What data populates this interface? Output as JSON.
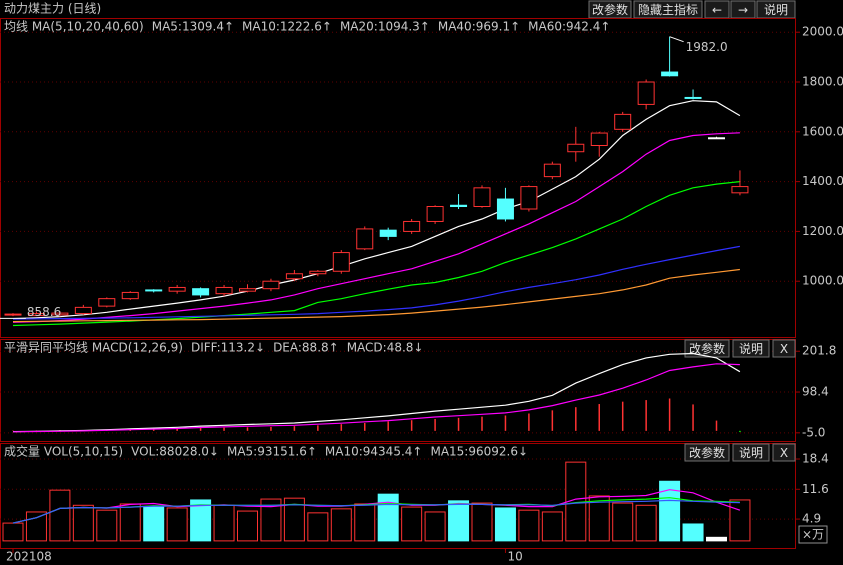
{
  "header": {
    "title": "动力煤主力 (日线)",
    "buttons": [
      "改参数",
      "隐藏主指标",
      "←",
      "→",
      "说明"
    ]
  },
  "chart_data": [
    {
      "type": "candlestick",
      "legend_title": "均线 MA(5,10,20,40,60)",
      "buttons": [],
      "open": [
        865,
        862,
        865,
        870,
        900,
        930,
        965,
        960,
        970,
        950,
        960,
        970,
        1010,
        1030,
        1040,
        1130,
        1205,
        1200,
        1240,
        1305,
        1300,
        1330,
        1290,
        1420,
        1520,
        1545,
        1610,
        1710,
        1840,
        1738,
        1576,
        1355
      ],
      "high": [
        872,
        878,
        880,
        905,
        935,
        960,
        968,
        985,
        975,
        985,
        988,
        1010,
        1045,
        1045,
        1125,
        1220,
        1215,
        1250,
        1305,
        1350,
        1385,
        1375,
        1385,
        1480,
        1620,
        1600,
        1680,
        1810,
        1982,
        1770,
        1580,
        1445
      ],
      "low": [
        860,
        860,
        858.6,
        865,
        895,
        925,
        955,
        950,
        935,
        940,
        955,
        960,
        1000,
        1020,
        1030,
        1125,
        1165,
        1190,
        1230,
        1290,
        1295,
        1240,
        1280,
        1410,
        1480,
        1500,
        1600,
        1690,
        1822,
        1730,
        1574,
        1345
      ],
      "close": [
        868,
        870,
        872,
        895,
        930,
        955,
        962,
        975,
        945,
        975,
        970,
        1000,
        1030,
        1040,
        1115,
        1210,
        1180,
        1240,
        1300,
        1300,
        1375,
        1250,
        1380,
        1470,
        1550,
        1595,
        1670,
        1800,
        1825,
        1735,
        1576,
        1380
      ],
      "up_color": "#ff3232",
      "down_color": "#54ffff",
      "flat_color": "#ffffff",
      "high_label": "1982.0",
      "low_label": "858.6",
      "series": [
        {
          "name": "MA5:1309.4↑",
          "color": "#ffffff",
          "values": [
            850,
            853,
            858,
            865,
            875,
            888,
            900,
            912,
            925,
            940,
            960,
            985,
            1005,
            1030,
            1060,
            1090,
            1115,
            1140,
            1180,
            1220,
            1250,
            1290,
            1320,
            1370,
            1420,
            1490,
            1585,
            1650,
            1705,
            1725,
            1720,
            1665
          ]
        },
        {
          "name": "MA10:1222.6↑",
          "color": "#ff00ff",
          "values": [
            835,
            838,
            842,
            848,
            855,
            862,
            870,
            880,
            890,
            900,
            912,
            925,
            945,
            970,
            990,
            1010,
            1030,
            1050,
            1080,
            1110,
            1150,
            1190,
            1230,
            1275,
            1320,
            1380,
            1440,
            1510,
            1565,
            1585,
            1592,
            1596
          ]
        },
        {
          "name": "MA20:1094.3↑",
          "color": "#00ff00",
          "values": [
            822,
            825,
            828,
            832,
            836,
            840,
            845,
            850,
            856,
            862,
            868,
            875,
            882,
            915,
            930,
            950,
            968,
            985,
            995,
            1015,
            1040,
            1075,
            1105,
            1135,
            1170,
            1210,
            1250,
            1300,
            1345,
            1375,
            1390,
            1400
          ]
        },
        {
          "name": "MA40:969.1↑",
          "color": "#3030ff",
          "values": [
            848,
            849,
            850,
            851,
            852,
            853,
            855,
            857,
            859,
            861,
            863,
            865,
            867,
            870,
            875,
            880,
            886,
            893,
            905,
            920,
            938,
            958,
            975,
            990,
            1006,
            1025,
            1048,
            1068,
            1087,
            1105,
            1123,
            1140
          ]
        },
        {
          "name": "MA60:942.4↑",
          "color": "#ff9933",
          "values": [
            838,
            839,
            840,
            841,
            842,
            843,
            844,
            845,
            846,
            848,
            850,
            852,
            854,
            856,
            858,
            862,
            866,
            872,
            880,
            888,
            896,
            906,
            917,
            928,
            939,
            950,
            965,
            985,
            1012,
            1025,
            1036,
            1047
          ]
        }
      ],
      "ylim": [
        776,
        2057
      ],
      "yticks": [
        {
          "value": 2000,
          "label": "2000.0"
        },
        {
          "value": 1800,
          "label": "1800.0"
        },
        {
          "value": 1600,
          "label": "1600.0"
        },
        {
          "value": 1400,
          "label": "1400.0"
        },
        {
          "value": 1200,
          "label": "1200.0"
        },
        {
          "value": 1000,
          "label": "1000.0"
        }
      ],
      "grid": true
    },
    {
      "type": "line",
      "legend_title": "平滑异同平均线 MACD(12,26,9)",
      "buttons": [
        "改参数",
        "说明",
        "X"
      ],
      "series": [
        {
          "name": "DIFF:113.2↓",
          "color": "#ffffff",
          "type": "line",
          "values": [
            -2,
            -1,
            0,
            1,
            3,
            5,
            7,
            9,
            12,
            14,
            16,
            18,
            20,
            24,
            28,
            33,
            38,
            44,
            50,
            55,
            60,
            65,
            75,
            90,
            121,
            145,
            168,
            185,
            194,
            196,
            185,
            150
          ]
        },
        {
          "name": "DEA:88.8↑",
          "color": "#ff00ff",
          "type": "line",
          "values": [
            -2.5,
            -1.5,
            -1,
            0,
            1.5,
            3,
            4.5,
            6,
            8.5,
            10,
            11.5,
            13,
            14,
            17,
            19.5,
            23,
            26,
            30.5,
            35,
            38.5,
            42,
            45.5,
            53,
            64,
            78,
            91,
            108,
            129,
            153,
            162,
            170,
            168
          ]
        },
        {
          "name": "MACD:48.8↓",
          "color": "#00ff00",
          "type": "bar",
          "up_color": "#ff3232",
          "values": [
            1,
            1,
            2,
            2,
            3,
            4,
            5,
            6,
            7,
            8,
            9,
            10,
            12,
            14,
            17,
            20,
            24,
            27,
            30,
            33,
            36,
            39,
            44,
            52,
            60,
            68,
            74,
            78,
            82,
            67,
            26,
            -3
          ]
        }
      ],
      "ylim": [
        -25.7,
        232.8
      ],
      "yticks": [
        201.8,
        98.4,
        {
          "value": -5,
          "label": "-5.0"
        }
      ],
      "grid": true
    },
    {
      "type": "bar",
      "legend_title": "成交量 VOL(5,10,15)",
      "buttons": [
        "改参数",
        "说明",
        "X"
      ],
      "unit": "×万",
      "categories": [
        "202108",
        null,
        null,
        null,
        null,
        null,
        null,
        null,
        null,
        null,
        null,
        null,
        null,
        null,
        null,
        null,
        null,
        null,
        null,
        null,
        null,
        "10",
        null,
        null,
        null,
        null,
        null,
        null,
        null,
        null,
        null,
        null
      ],
      "values_name": "VOL:88028.0↓",
      "values_color": "#ffffff",
      "values": [
        4.0,
        6.5,
        11.4,
        8.0,
        6.9,
        8.3,
        7.6,
        7.4,
        9.2,
        8.0,
        6.7,
        9.4,
        9.6,
        6.3,
        7.2,
        8.3,
        10.5,
        7.6,
        6.5,
        9.0,
        8.5,
        7.4,
        6.9,
        6.5,
        17.7,
        10.1,
        8.5,
        8.0,
        13.4,
        3.8,
        0.8,
        9.2
      ],
      "series": [
        {
          "name": "MA5:93151.6↑",
          "color": "#ff00ff",
          "values": [
            4,
            5.2,
            7.3,
            7.5,
            7.4,
            8.2,
            8.4,
            7.7,
            7.9,
            8.1,
            7.8,
            7.7,
            8.2,
            7.8,
            7.8,
            8.2,
            8.7,
            8,
            8,
            8.4,
            8.2,
            8,
            7.7,
            7.7,
            9.4,
            9.9,
            10,
            10.2,
            11.5,
            10.8,
            8.7,
            6.9
          ]
        },
        {
          "name": "MA10:94345.4↑",
          "color": "#00ff00",
          "values": [
            4,
            5.2,
            7.3,
            7.5,
            7.4,
            7.6,
            7.9,
            7.8,
            8.1,
            8.0,
            8.0,
            8.0,
            8.2,
            8.0,
            7.9,
            8.1,
            8.4,
            8.2,
            8.1,
            8.3,
            8.2,
            8.1,
            8.2,
            7.9,
            8.6,
            9.0,
            9.2,
            9.4,
            9.7,
            9.0,
            8.9,
            8.7
          ]
        },
        {
          "name": "MA15:96092.6↓",
          "color": "#3a5cff",
          "values": [
            4,
            5.2,
            7.3,
            7.5,
            7.4,
            7.6,
            7.8,
            7.8,
            8.0,
            8.0,
            8.0,
            8.0,
            8.1,
            8.0,
            7.9,
            8.0,
            8.2,
            8.1,
            8.1,
            8.2,
            8.2,
            8.1,
            8.1,
            8.0,
            8.5,
            8.7,
            8.8,
            8.9,
            9.1,
            8.9,
            8.7,
            8.6
          ]
        }
      ],
      "ylim": [
        -1.6,
        22.0
      ],
      "yticks": [
        18.4,
        11.6,
        4.9
      ],
      "grid": true
    }
  ]
}
